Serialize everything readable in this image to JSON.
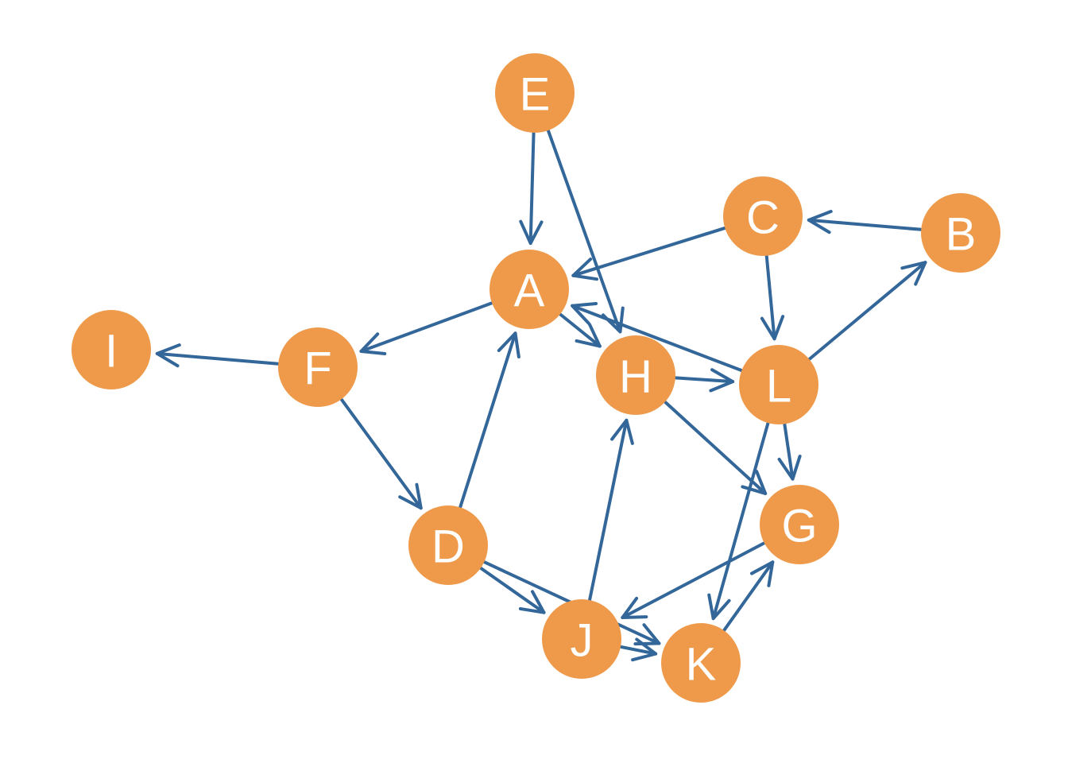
{
  "colors": {
    "node_fill": "#EE9A4A",
    "edge": "#336699",
    "label": "#FFFFFF",
    "background": "#FFFFFF"
  },
  "nodes": [
    {
      "id": "E",
      "label": "E"
    },
    {
      "id": "C",
      "label": "C"
    },
    {
      "id": "B",
      "label": "B"
    },
    {
      "id": "A",
      "label": "A"
    },
    {
      "id": "I",
      "label": "I"
    },
    {
      "id": "F",
      "label": "F"
    },
    {
      "id": "H",
      "label": "H"
    },
    {
      "id": "L",
      "label": "L"
    },
    {
      "id": "G",
      "label": "G"
    },
    {
      "id": "D",
      "label": "D"
    },
    {
      "id": "J",
      "label": "J"
    },
    {
      "id": "K",
      "label": "K"
    }
  ],
  "edges": [
    {
      "from": "E",
      "to": "A"
    },
    {
      "from": "E",
      "to": "H"
    },
    {
      "from": "C",
      "to": "A"
    },
    {
      "from": "B",
      "to": "C"
    },
    {
      "from": "L",
      "to": "B"
    },
    {
      "from": "L",
      "to": "A"
    },
    {
      "from": "C",
      "to": "L"
    },
    {
      "from": "A",
      "to": "F"
    },
    {
      "from": "A",
      "to": "H"
    },
    {
      "from": "F",
      "to": "I"
    },
    {
      "from": "F",
      "to": "D"
    },
    {
      "from": "D",
      "to": "A"
    },
    {
      "from": "H",
      "to": "L"
    },
    {
      "from": "H",
      "to": "G"
    },
    {
      "from": "L",
      "to": "G"
    },
    {
      "from": "L",
      "to": "K"
    },
    {
      "from": "G",
      "to": "J"
    },
    {
      "from": "K",
      "to": "G"
    },
    {
      "from": "D",
      "to": "J"
    },
    {
      "from": "D",
      "to": "K"
    },
    {
      "from": "J",
      "to": "H"
    },
    {
      "from": "J",
      "to": "K"
    }
  ]
}
